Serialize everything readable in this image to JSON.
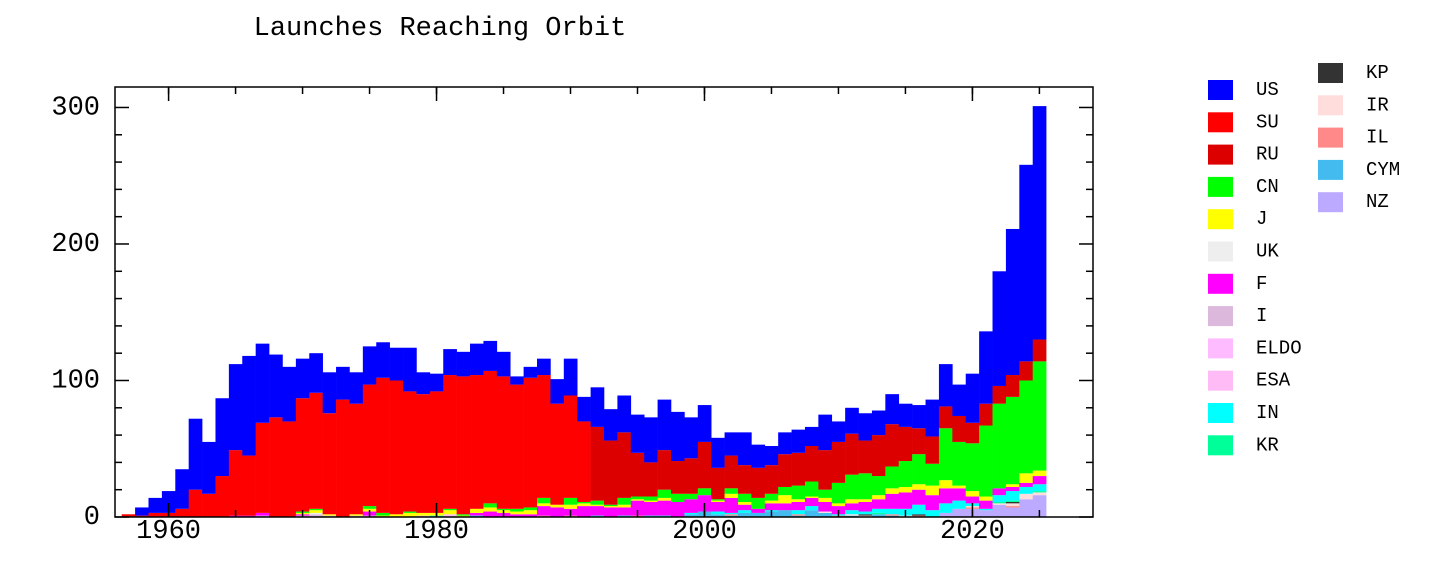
{
  "chart_data": {
    "type": "bar",
    "stacked": true,
    "title": "Launches Reaching Orbit",
    "x": [
      1957,
      1958,
      1959,
      1960,
      1961,
      1962,
      1963,
      1964,
      1965,
      1966,
      1967,
      1968,
      1969,
      1970,
      1971,
      1972,
      1973,
      1974,
      1975,
      1976,
      1977,
      1978,
      1979,
      1980,
      1981,
      1982,
      1983,
      1984,
      1985,
      1986,
      1987,
      1988,
      1989,
      1990,
      1991,
      1992,
      1993,
      1994,
      1995,
      1996,
      1997,
      1998,
      1999,
      2000,
      2001,
      2002,
      2003,
      2004,
      2005,
      2006,
      2007,
      2008,
      2009,
      2010,
      2011,
      2012,
      2013,
      2014,
      2015,
      2016,
      2017,
      2018,
      2019,
      2020,
      2021,
      2022,
      2023,
      2024,
      2025
    ],
    "xlim": [
      1956,
      2029
    ],
    "xticks": [
      1960,
      1980,
      2000,
      2020
    ],
    "xminorticks": [
      1960,
      1965,
      1970,
      1975,
      1980,
      1985,
      1990,
      1995,
      2000,
      2005,
      2010,
      2015,
      2020,
      2025
    ],
    "ylim": [
      0,
      315
    ],
    "yticks": [
      0,
      100,
      200,
      300
    ],
    "yminorticks": [
      20,
      40,
      60,
      80,
      120,
      140,
      160,
      180,
      220,
      240,
      260,
      280
    ],
    "series": [
      {
        "name": "US",
        "color": "#0000ff",
        "values": [
          0,
          6,
          11,
          16,
          29,
          52,
          38,
          57,
          63,
          73,
          58,
          46,
          40,
          29,
          29,
          30,
          24,
          23,
          28,
          26,
          24,
          32,
          16,
          13,
          19,
          18,
          23,
          22,
          18,
          6,
          8,
          12,
          18,
          27,
          18,
          29,
          23,
          27,
          28,
          33,
          37,
          36,
          30,
          27,
          22,
          17,
          24,
          17,
          14,
          16,
          17,
          14,
          26,
          15,
          19,
          20,
          18,
          22,
          17,
          17,
          27,
          31,
          23,
          36,
          53,
          84,
          107,
          144,
          171
        ]
      },
      {
        "name": "SU",
        "color": "#ff0000",
        "values": [
          2,
          1,
          3,
          3,
          6,
          20,
          17,
          30,
          48,
          44,
          66,
          73,
          70,
          83,
          85,
          74,
          86,
          81,
          89,
          99,
          98,
          88,
          87,
          89,
          98,
          101,
          98,
          97,
          97,
          91,
          95,
          90,
          74,
          75,
          59,
          0,
          0,
          0,
          0,
          0,
          0,
          0,
          0,
          0,
          0,
          0,
          0,
          0,
          0,
          0,
          0,
          0,
          0,
          0,
          0,
          0,
          0,
          0,
          0,
          0,
          0,
          0,
          0,
          0,
          0,
          0,
          0,
          0,
          0
        ]
      },
      {
        "name": "RU",
        "color": "#dd0000",
        "values": [
          0,
          0,
          0,
          0,
          0,
          0,
          0,
          0,
          0,
          0,
          0,
          0,
          0,
          0,
          0,
          0,
          0,
          0,
          0,
          0,
          0,
          0,
          0,
          0,
          0,
          0,
          0,
          0,
          0,
          0,
          0,
          0,
          0,
          0,
          0,
          54,
          47,
          48,
          32,
          25,
          29,
          24,
          26,
          34,
          23,
          24,
          21,
          22,
          21,
          24,
          24,
          26,
          29,
          30,
          30,
          24,
          30,
          31,
          25,
          19,
          20,
          16,
          19,
          15,
          16,
          13,
          16,
          14,
          16
        ]
      },
      {
        "name": "CN",
        "color": "#00ff00",
        "values": [
          0,
          0,
          0,
          0,
          0,
          0,
          0,
          0,
          0,
          0,
          0,
          0,
          0,
          1,
          1,
          0,
          0,
          0,
          2,
          2,
          0,
          1,
          0,
          0,
          1,
          1,
          0,
          3,
          1,
          2,
          2,
          4,
          0,
          5,
          1,
          3,
          1,
          5,
          2,
          3,
          6,
          6,
          4,
          5,
          1,
          4,
          6,
          8,
          5,
          6,
          10,
          11,
          6,
          15,
          18,
          19,
          14,
          16,
          19,
          22,
          16,
          38,
          32,
          35,
          52,
          62,
          64,
          68,
          80
        ]
      },
      {
        "name": "J",
        "color": "#ffff00",
        "values": [
          0,
          0,
          0,
          0,
          0,
          0,
          0,
          0,
          0,
          0,
          0,
          0,
          0,
          1,
          2,
          1,
          0,
          1,
          2,
          1,
          2,
          3,
          2,
          2,
          3,
          1,
          3,
          3,
          2,
          2,
          3,
          2,
          2,
          3,
          2,
          1,
          1,
          2,
          1,
          1,
          2,
          0,
          0,
          0,
          1,
          3,
          2,
          0,
          2,
          6,
          2,
          1,
          3,
          2,
          3,
          2,
          3,
          4,
          4,
          4,
          7,
          6,
          2,
          4,
          3,
          0,
          2,
          7,
          4
        ]
      },
      {
        "name": "UK",
        "color": "#eeeeee",
        "values": [
          0,
          0,
          0,
          0,
          0,
          0,
          0,
          0,
          0,
          0,
          0,
          0,
          0,
          0,
          1,
          0,
          0,
          0,
          0,
          0,
          0,
          0,
          0,
          0,
          0,
          0,
          0,
          0,
          0,
          0,
          0,
          0,
          0,
          0,
          0,
          0,
          0,
          0,
          0,
          0,
          0,
          0,
          0,
          0,
          0,
          0,
          0,
          0,
          0,
          0,
          0,
          0,
          0,
          0,
          0,
          0,
          0,
          0,
          0,
          0,
          0,
          0,
          0,
          0,
          0,
          0,
          0,
          0,
          0
        ]
      },
      {
        "name": "F",
        "color": "#ff00ff",
        "values": [
          0,
          0,
          0,
          0,
          0,
          0,
          0,
          0,
          1,
          1,
          2,
          0,
          0,
          1,
          0,
          0,
          0,
          0,
          3,
          0,
          0,
          0,
          0,
          0,
          0,
          0,
          2,
          4,
          3,
          2,
          2,
          7,
          7,
          5,
          8,
          7,
          7,
          6,
          11,
          10,
          11,
          11,
          10,
          12,
          7,
          11,
          4,
          3,
          5,
          5,
          6,
          6,
          7,
          6,
          5,
          7,
          7,
          11,
          12,
          11,
          11,
          11,
          9,
          5,
          6,
          5,
          3,
          3,
          6
        ]
      },
      {
        "name": "I",
        "color": "#ddb8dd",
        "values": [
          0,
          0,
          0,
          0,
          0,
          0,
          0,
          0,
          0,
          0,
          1,
          0,
          0,
          1,
          2,
          1,
          0,
          1,
          1,
          0,
          0,
          0,
          0,
          0,
          0,
          0,
          0,
          0,
          0,
          0,
          0,
          0,
          0,
          0,
          0,
          0,
          0,
          0,
          0,
          0,
          0,
          0,
          0,
          0,
          0,
          0,
          0,
          0,
          0,
          0,
          0,
          0,
          0,
          0,
          0,
          0,
          0,
          0,
          0,
          0,
          0,
          0,
          0,
          0,
          0,
          0,
          0,
          0,
          0
        ]
      },
      {
        "name": "ELDO",
        "color": "#ffbbff",
        "values": [
          0,
          0,
          0,
          0,
          0,
          0,
          0,
          0,
          0,
          0,
          0,
          0,
          0,
          0,
          0,
          0,
          0,
          0,
          0,
          0,
          0,
          0,
          0,
          0,
          0,
          0,
          0,
          0,
          0,
          0,
          0,
          0,
          0,
          0,
          0,
          0,
          0,
          0,
          0,
          0,
          0,
          0,
          0,
          0,
          0,
          0,
          0,
          0,
          0,
          0,
          0,
          0,
          0,
          0,
          0,
          0,
          0,
          0,
          0,
          0,
          0,
          0,
          0,
          0,
          0,
          0,
          0,
          0,
          0
        ]
      },
      {
        "name": "ESA",
        "color": "#ffbbf5",
        "values": [
          0,
          0,
          0,
          0,
          0,
          0,
          0,
          0,
          0,
          0,
          0,
          0,
          0,
          0,
          0,
          0,
          0,
          0,
          0,
          0,
          0,
          0,
          1,
          0,
          2,
          0,
          0,
          0,
          0,
          0,
          0,
          0,
          0,
          0,
          0,
          0,
          0,
          0,
          0,
          0,
          0,
          0,
          0,
          0,
          0,
          0,
          0,
          0,
          0,
          0,
          0,
          0,
          0,
          0,
          0,
          0,
          0,
          0,
          0,
          0,
          0,
          0,
          0,
          0,
          0,
          0,
          0,
          0,
          0
        ]
      },
      {
        "name": "IN",
        "color": "#00ffff",
        "values": [
          0,
          0,
          0,
          0,
          0,
          0,
          0,
          0,
          0,
          0,
          0,
          0,
          0,
          0,
          0,
          0,
          0,
          0,
          0,
          0,
          0,
          0,
          0,
          1,
          0,
          0,
          1,
          0,
          0,
          0,
          0,
          0,
          0,
          0,
          0,
          1,
          0,
          1,
          0,
          1,
          1,
          0,
          1,
          0,
          2,
          1,
          2,
          0,
          1,
          0,
          3,
          3,
          0,
          1,
          3,
          2,
          3,
          4,
          5,
          7,
          5,
          7,
          6,
          2,
          1,
          5,
          7,
          5,
          5
        ]
      },
      {
        "name": "KR",
        "color": "#00ff99",
        "values": [
          0,
          0,
          0,
          0,
          0,
          0,
          0,
          0,
          0,
          0,
          0,
          0,
          0,
          0,
          0,
          0,
          0,
          0,
          0,
          0,
          0,
          0,
          0,
          0,
          0,
          0,
          0,
          0,
          0,
          0,
          0,
          0,
          0,
          0,
          0,
          0,
          0,
          0,
          0,
          0,
          0,
          0,
          0,
          0,
          0,
          0,
          0,
          0,
          0,
          0,
          0,
          0,
          0,
          0,
          0,
          0,
          1,
          0,
          0,
          0,
          0,
          0,
          0,
          0,
          0,
          1,
          1,
          0,
          1
        ]
      },
      {
        "name": "KP",
        "color": "#333333",
        "values": [
          0,
          0,
          0,
          0,
          0,
          0,
          0,
          0,
          0,
          0,
          0,
          0,
          0,
          0,
          0,
          0,
          0,
          0,
          0,
          0,
          0,
          0,
          0,
          0,
          0,
          0,
          0,
          0,
          0,
          0,
          0,
          0,
          0,
          0,
          0,
          0,
          0,
          0,
          0,
          0,
          0,
          0,
          0,
          0,
          0,
          0,
          0,
          0,
          0,
          0,
          0,
          0,
          0,
          0,
          0,
          1,
          0,
          0,
          0,
          1,
          0,
          0,
          0,
          0,
          0,
          0,
          1,
          0,
          0
        ]
      },
      {
        "name": "IR",
        "color": "#ffdddd",
        "values": [
          0,
          0,
          0,
          0,
          0,
          0,
          0,
          0,
          0,
          0,
          0,
          0,
          0,
          0,
          0,
          0,
          0,
          0,
          0,
          0,
          0,
          0,
          0,
          0,
          0,
          0,
          0,
          0,
          0,
          0,
          0,
          0,
          0,
          0,
          0,
          0,
          0,
          0,
          0,
          0,
          0,
          0,
          0,
          0,
          0,
          0,
          0,
          0,
          0,
          0,
          0,
          0,
          1,
          0,
          1,
          1,
          0,
          0,
          1,
          0,
          0,
          0,
          0,
          1,
          0,
          1,
          2,
          4,
          2
        ]
      },
      {
        "name": "IL",
        "color": "#ff8888",
        "values": [
          0,
          0,
          0,
          0,
          0,
          0,
          0,
          0,
          0,
          0,
          0,
          0,
          0,
          0,
          0,
          0,
          0,
          0,
          0,
          0,
          0,
          0,
          0,
          0,
          0,
          0,
          0,
          0,
          0,
          0,
          0,
          1,
          0,
          1,
          0,
          0,
          0,
          0,
          1,
          0,
          0,
          0,
          0,
          0,
          0,
          1,
          0,
          0,
          0,
          0,
          1,
          0,
          0,
          1,
          0,
          0,
          0,
          1,
          0,
          1,
          0,
          0,
          0,
          1,
          0,
          0,
          1,
          0,
          0
        ]
      },
      {
        "name": "CYM",
        "color": "#44bbee",
        "values": [
          0,
          0,
          0,
          0,
          0,
          0,
          0,
          0,
          0,
          0,
          0,
          0,
          0,
          0,
          0,
          0,
          0,
          0,
          0,
          0,
          0,
          0,
          0,
          0,
          0,
          0,
          0,
          0,
          0,
          0,
          0,
          0,
          0,
          0,
          0,
          0,
          0,
          0,
          0,
          0,
          0,
          0,
          2,
          4,
          2,
          1,
          3,
          3,
          4,
          5,
          1,
          5,
          3,
          0,
          1,
          0,
          2,
          1,
          0,
          0,
          0,
          0,
          0,
          0,
          0,
          0,
          0,
          0,
          0
        ]
      },
      {
        "name": "NZ",
        "color": "#bbaaff",
        "values": [
          0,
          0,
          0,
          0,
          0,
          0,
          0,
          0,
          0,
          0,
          0,
          0,
          0,
          0,
          0,
          0,
          0,
          0,
          0,
          0,
          0,
          0,
          0,
          0,
          0,
          0,
          0,
          0,
          0,
          0,
          0,
          0,
          0,
          0,
          0,
          0,
          0,
          0,
          0,
          0,
          0,
          0,
          0,
          0,
          0,
          0,
          0,
          0,
          0,
          0,
          0,
          0,
          0,
          0,
          0,
          0,
          0,
          0,
          0,
          0,
          0,
          3,
          6,
          6,
          5,
          9,
          7,
          13,
          16
        ]
      }
    ]
  }
}
